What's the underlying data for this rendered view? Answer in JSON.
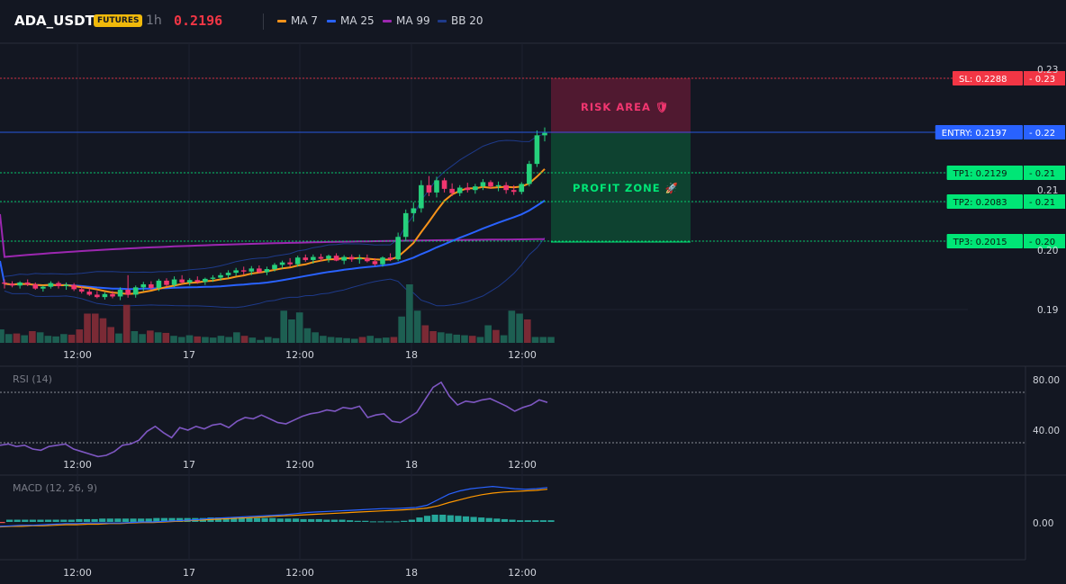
{
  "header": {
    "symbol": "ADA_USDT",
    "badge": "FUTURES",
    "timeframe": "1h",
    "price": "0.2196",
    "legend": [
      {
        "label": "MA 7",
        "color": "#f7931a"
      },
      {
        "label": "MA 25",
        "color": "#2962ff"
      },
      {
        "label": "MA 99",
        "color": "#9c27b0"
      },
      {
        "label": "BB 20",
        "color": "#1e3a8a"
      }
    ]
  },
  "annotations": {
    "risk_label": "RISK AREA 🛡",
    "profit_label": "PROFIT ZONE 🚀"
  },
  "levels": [
    {
      "label": "SL: 0.2288",
      "axis": "0.23",
      "color": "#f23645"
    },
    {
      "label": "ENTRY: 0.2197",
      "axis": "0.22",
      "color": "#2962ff"
    },
    {
      "label": "TP1: 0.2129",
      "axis": "0.21",
      "color": "#00e676"
    },
    {
      "label": "TP2: 0.2083",
      "axis": "0.21",
      "color": "#00e676"
    },
    {
      "label": "TP3: 0.2015",
      "axis": "0.20",
      "color": "#00e676"
    }
  ],
  "rsi": {
    "title": "RSI (14)",
    "ticks": [
      "80.00",
      "40.00"
    ]
  },
  "macd": {
    "title": "MACD (12, 26, 9)",
    "ticks": [
      "0.00"
    ]
  },
  "chart_data": {
    "type": "candlestick",
    "x_ticks": [
      "12:00",
      "17",
      "12:00",
      "18",
      "12:00"
    ],
    "y_ticks": [
      "0.23",
      "0.21",
      "0.20",
      "0.19"
    ],
    "levels": {
      "sl": 0.2288,
      "entry": 0.2197,
      "tp1": 0.2129,
      "tp2": 0.2083,
      "tp3": 0.2015
    },
    "candles": [
      [
        0.195,
        0.1955,
        0.194,
        0.1948
      ],
      [
        0.1948,
        0.1952,
        0.1942,
        0.1945
      ],
      [
        0.1945,
        0.1952,
        0.194,
        0.195
      ],
      [
        0.195,
        0.1955,
        0.1944,
        0.1947
      ],
      [
        0.1947,
        0.195,
        0.1938,
        0.194
      ],
      [
        0.194,
        0.1945,
        0.1935,
        0.1943
      ],
      [
        0.1943,
        0.1952,
        0.194,
        0.1949
      ],
      [
        0.1949,
        0.1952,
        0.194,
        0.1944
      ],
      [
        0.1944,
        0.195,
        0.1938,
        0.1946
      ],
      [
        0.1946,
        0.1949,
        0.1936,
        0.1939
      ],
      [
        0.1939,
        0.1944,
        0.1932,
        0.1935
      ],
      [
        0.1935,
        0.1941,
        0.1928,
        0.193
      ],
      [
        0.193,
        0.1936,
        0.1924,
        0.1926
      ],
      [
        0.1926,
        0.1934,
        0.1922,
        0.1931
      ],
      [
        0.1931,
        0.1936,
        0.1924,
        0.1927
      ],
      [
        0.1927,
        0.1942,
        0.1921,
        0.1938
      ],
      [
        0.1938,
        0.1962,
        0.1925,
        0.193
      ],
      [
        0.193,
        0.1945,
        0.1925,
        0.1942
      ],
      [
        0.1942,
        0.1951,
        0.1936,
        0.1947
      ],
      [
        0.1947,
        0.1952,
        0.1938,
        0.1941
      ],
      [
        0.1941,
        0.1956,
        0.1936,
        0.1953
      ],
      [
        0.1953,
        0.1957,
        0.1943,
        0.1946
      ],
      [
        0.1946,
        0.196,
        0.1942,
        0.1955
      ],
      [
        0.1955,
        0.1962,
        0.1948,
        0.195
      ],
      [
        0.195,
        0.1957,
        0.1945,
        0.1954
      ],
      [
        0.1954,
        0.196,
        0.1948,
        0.1951
      ],
      [
        0.1951,
        0.1958,
        0.1946,
        0.1956
      ],
      [
        0.1956,
        0.1962,
        0.1951,
        0.1958
      ],
      [
        0.1958,
        0.1966,
        0.1953,
        0.1962
      ],
      [
        0.1962,
        0.197,
        0.1957,
        0.1966
      ],
      [
        0.1966,
        0.1974,
        0.1961,
        0.197
      ],
      [
        0.197,
        0.1976,
        0.1963,
        0.1968
      ],
      [
        0.1968,
        0.1977,
        0.1962,
        0.1973
      ],
      [
        0.1973,
        0.1978,
        0.1965,
        0.1967
      ],
      [
        0.1967,
        0.1976,
        0.1962,
        0.1972
      ],
      [
        0.1972,
        0.1982,
        0.1968,
        0.1979
      ],
      [
        0.1979,
        0.1986,
        0.1973,
        0.1983
      ],
      [
        0.1983,
        0.199,
        0.1976,
        0.198
      ],
      [
        0.198,
        0.1994,
        0.1976,
        0.1991
      ],
      [
        0.1991,
        0.1996,
        0.1984,
        0.1987
      ],
      [
        0.1987,
        0.1996,
        0.1981,
        0.1992
      ],
      [
        0.1992,
        0.1997,
        0.1985,
        0.1989
      ],
      [
        0.1989,
        0.1996,
        0.1983,
        0.1994
      ],
      [
        0.1994,
        0.1998,
        0.1985,
        0.1986
      ],
      [
        0.1986,
        0.1995,
        0.198,
        0.1992
      ],
      [
        0.1992,
        0.1996,
        0.1984,
        0.1988
      ],
      [
        0.1988,
        0.1996,
        0.1981,
        0.199
      ],
      [
        0.199,
        0.1996,
        0.1983,
        0.1985
      ],
      [
        0.1985,
        0.199,
        0.1977,
        0.198
      ],
      [
        0.198,
        0.1993,
        0.1976,
        0.1991
      ],
      [
        0.1991,
        0.1998,
        0.1985,
        0.1988
      ],
      [
        0.1988,
        0.2032,
        0.1985,
        0.2025
      ],
      [
        0.2025,
        0.207,
        0.2018,
        0.2064
      ],
      [
        0.2064,
        0.2082,
        0.205,
        0.2072
      ],
      [
        0.2072,
        0.2118,
        0.2065,
        0.211
      ],
      [
        0.211,
        0.2125,
        0.2092,
        0.2098
      ],
      [
        0.2098,
        0.2124,
        0.209,
        0.2118
      ],
      [
        0.2118,
        0.2122,
        0.2098,
        0.2104
      ],
      [
        0.2104,
        0.2113,
        0.2092,
        0.2097
      ],
      [
        0.2097,
        0.211,
        0.2092,
        0.2106
      ],
      [
        0.2106,
        0.2114,
        0.2098,
        0.2102
      ],
      [
        0.2102,
        0.2112,
        0.2096,
        0.2108
      ],
      [
        0.2108,
        0.212,
        0.2102,
        0.2115
      ],
      [
        0.2115,
        0.2118,
        0.2104,
        0.2108
      ],
      [
        0.2108,
        0.2116,
        0.21,
        0.211
      ],
      [
        0.211,
        0.2115,
        0.2096,
        0.2102
      ],
      [
        0.2102,
        0.211,
        0.2094,
        0.2099
      ],
      [
        0.2099,
        0.2115,
        0.2095,
        0.2112
      ],
      [
        0.2112,
        0.215,
        0.2108,
        0.2145
      ],
      [
        0.2145,
        0.22,
        0.214,
        0.2192
      ],
      [
        0.2192,
        0.2205,
        0.2182,
        0.2196
      ]
    ],
    "volume": [
      [
        0.23,
        1
      ],
      [
        0.15,
        1
      ],
      [
        0.16,
        0
      ],
      [
        0.13,
        1
      ],
      [
        0.2,
        0
      ],
      [
        0.18,
        1
      ],
      [
        0.12,
        1
      ],
      [
        0.11,
        1
      ],
      [
        0.15,
        1
      ],
      [
        0.14,
        0
      ],
      [
        0.23,
        0
      ],
      [
        0.5,
        0
      ],
      [
        0.5,
        0
      ],
      [
        0.42,
        0
      ],
      [
        0.27,
        0
      ],
      [
        0.16,
        1
      ],
      [
        0.65,
        0
      ],
      [
        0.2,
        1
      ],
      [
        0.15,
        1
      ],
      [
        0.21,
        0
      ],
      [
        0.18,
        1
      ],
      [
        0.17,
        0
      ],
      [
        0.12,
        1
      ],
      [
        0.1,
        1
      ],
      [
        0.13,
        1
      ],
      [
        0.11,
        0
      ],
      [
        0.1,
        1
      ],
      [
        0.09,
        1
      ],
      [
        0.12,
        1
      ],
      [
        0.1,
        1
      ],
      [
        0.18,
        1
      ],
      [
        0.12,
        0
      ],
      [
        0.09,
        1
      ],
      [
        0.05,
        1
      ],
      [
        0.1,
        1
      ],
      [
        0.08,
        1
      ],
      [
        0.55,
        1
      ],
      [
        0.4,
        1
      ],
      [
        0.52,
        1
      ],
      [
        0.25,
        1
      ],
      [
        0.18,
        1
      ],
      [
        0.12,
        1
      ],
      [
        0.1,
        1
      ],
      [
        0.09,
        1
      ],
      [
        0.08,
        1
      ],
      [
        0.07,
        1
      ],
      [
        0.1,
        0
      ],
      [
        0.12,
        1
      ],
      [
        0.08,
        1
      ],
      [
        0.09,
        1
      ],
      [
        0.1,
        0
      ],
      [
        0.45,
        1
      ],
      [
        1.0,
        1
      ],
      [
        0.55,
        1
      ],
      [
        0.3,
        0
      ],
      [
        0.2,
        0
      ],
      [
        0.18,
        1
      ],
      [
        0.16,
        1
      ],
      [
        0.14,
        1
      ],
      [
        0.13,
        1
      ],
      [
        0.12,
        0
      ],
      [
        0.1,
        1
      ],
      [
        0.3,
        1
      ],
      [
        0.22,
        0
      ],
      [
        0.13,
        1
      ],
      [
        0.55,
        1
      ],
      [
        0.5,
        1
      ],
      [
        0.4,
        0
      ],
      [
        0.1,
        1
      ],
      [
        0.1,
        1
      ],
      [
        0.1,
        1
      ]
    ],
    "rsi": [
      38,
      39,
      37,
      38,
      35,
      34,
      37,
      38,
      39,
      35,
      33,
      31,
      29,
      30,
      33,
      38,
      39,
      42,
      49,
      53,
      48,
      44,
      52,
      50,
      53,
      51,
      54,
      55,
      52,
      57,
      60,
      59,
      62,
      59,
      56,
      55,
      58,
      61,
      63,
      64,
      66,
      65,
      68,
      67,
      69,
      60,
      62,
      63,
      57,
      56,
      60,
      64,
      74,
      84,
      88,
      77,
      70,
      73,
      72,
      74,
      75,
      72,
      69,
      65,
      68,
      70,
      74,
      72
    ],
    "macd_line": [
      -0.0008,
      -0.0007,
      -0.0006,
      -0.0006,
      -0.0005,
      -0.0004,
      -0.0003,
      -0.0003,
      -0.0002,
      -0.0002,
      -0.0002,
      -0.0002,
      -0.0001,
      0.0,
      0.0,
      0.0001,
      0.0002,
      0.0003,
      0.0004,
      0.0006,
      0.0007,
      0.0008,
      0.0009,
      0.001,
      0.0011,
      0.0012,
      0.0013,
      0.0015,
      0.0017,
      0.0018,
      0.0019,
      0.002,
      0.0021,
      0.0022,
      0.0023,
      0.0024,
      0.0024,
      0.0025,
      0.0026,
      0.003,
      0.004,
      0.005,
      0.0056,
      0.006,
      0.0062,
      0.0064,
      0.0062,
      0.006,
      0.0059,
      0.006,
      0.0062
    ],
    "signal_line": [
      -0.0009,
      -0.0008,
      -0.0008,
      -0.0007,
      -0.0007,
      -0.0006,
      -0.0005,
      -0.0005,
      -0.0004,
      -0.0004,
      -0.0003,
      -0.0003,
      -0.0002,
      -0.0001,
      -0.0001,
      0.0,
      0.0001,
      0.0002,
      0.0003,
      0.0004,
      0.0005,
      0.0006,
      0.0007,
      0.0008,
      0.0009,
      0.001,
      0.0011,
      0.0012,
      0.0013,
      0.0014,
      0.0015,
      0.0016,
      0.0017,
      0.0018,
      0.0019,
      0.002,
      0.0021,
      0.0022,
      0.0023,
      0.0025,
      0.0029,
      0.0035,
      0.004,
      0.0045,
      0.0049,
      0.0052,
      0.0054,
      0.0055,
      0.0056,
      0.0057,
      0.0059
    ],
    "macd_hist": [
      -0.0002,
      0.0004,
      0.0004,
      0.0004,
      0.0004,
      0.0004,
      0.0004,
      0.0004,
      0.0004,
      0.0004,
      0.0005,
      0.0005,
      0.0005,
      0.0006,
      0.0006,
      0.0006,
      0.0006,
      0.0006,
      0.0006,
      0.0006,
      0.0007,
      0.0007,
      0.0007,
      0.0007,
      0.0007,
      0.0007,
      0.0007,
      0.0008,
      0.0008,
      0.0008,
      0.0008,
      0.0008,
      0.0007,
      0.0007,
      0.0007,
      0.0007,
      0.0006,
      0.0006,
      0.0006,
      0.0005,
      0.0005,
      0.0005,
      0.0004,
      0.0004,
      0.0004,
      0.0003,
      0.0002,
      0.0002,
      0.0001,
      0.0001,
      0.0001,
      0.0001,
      0.0002,
      0.0004,
      0.0008,
      0.0011,
      0.0013,
      0.0013,
      0.0012,
      0.0011,
      0.001,
      0.0009,
      0.0008,
      0.0007,
      0.0006,
      0.0005,
      0.0004,
      0.0003,
      0.0003,
      0.0003,
      0.0003,
      0.0003
    ]
  }
}
